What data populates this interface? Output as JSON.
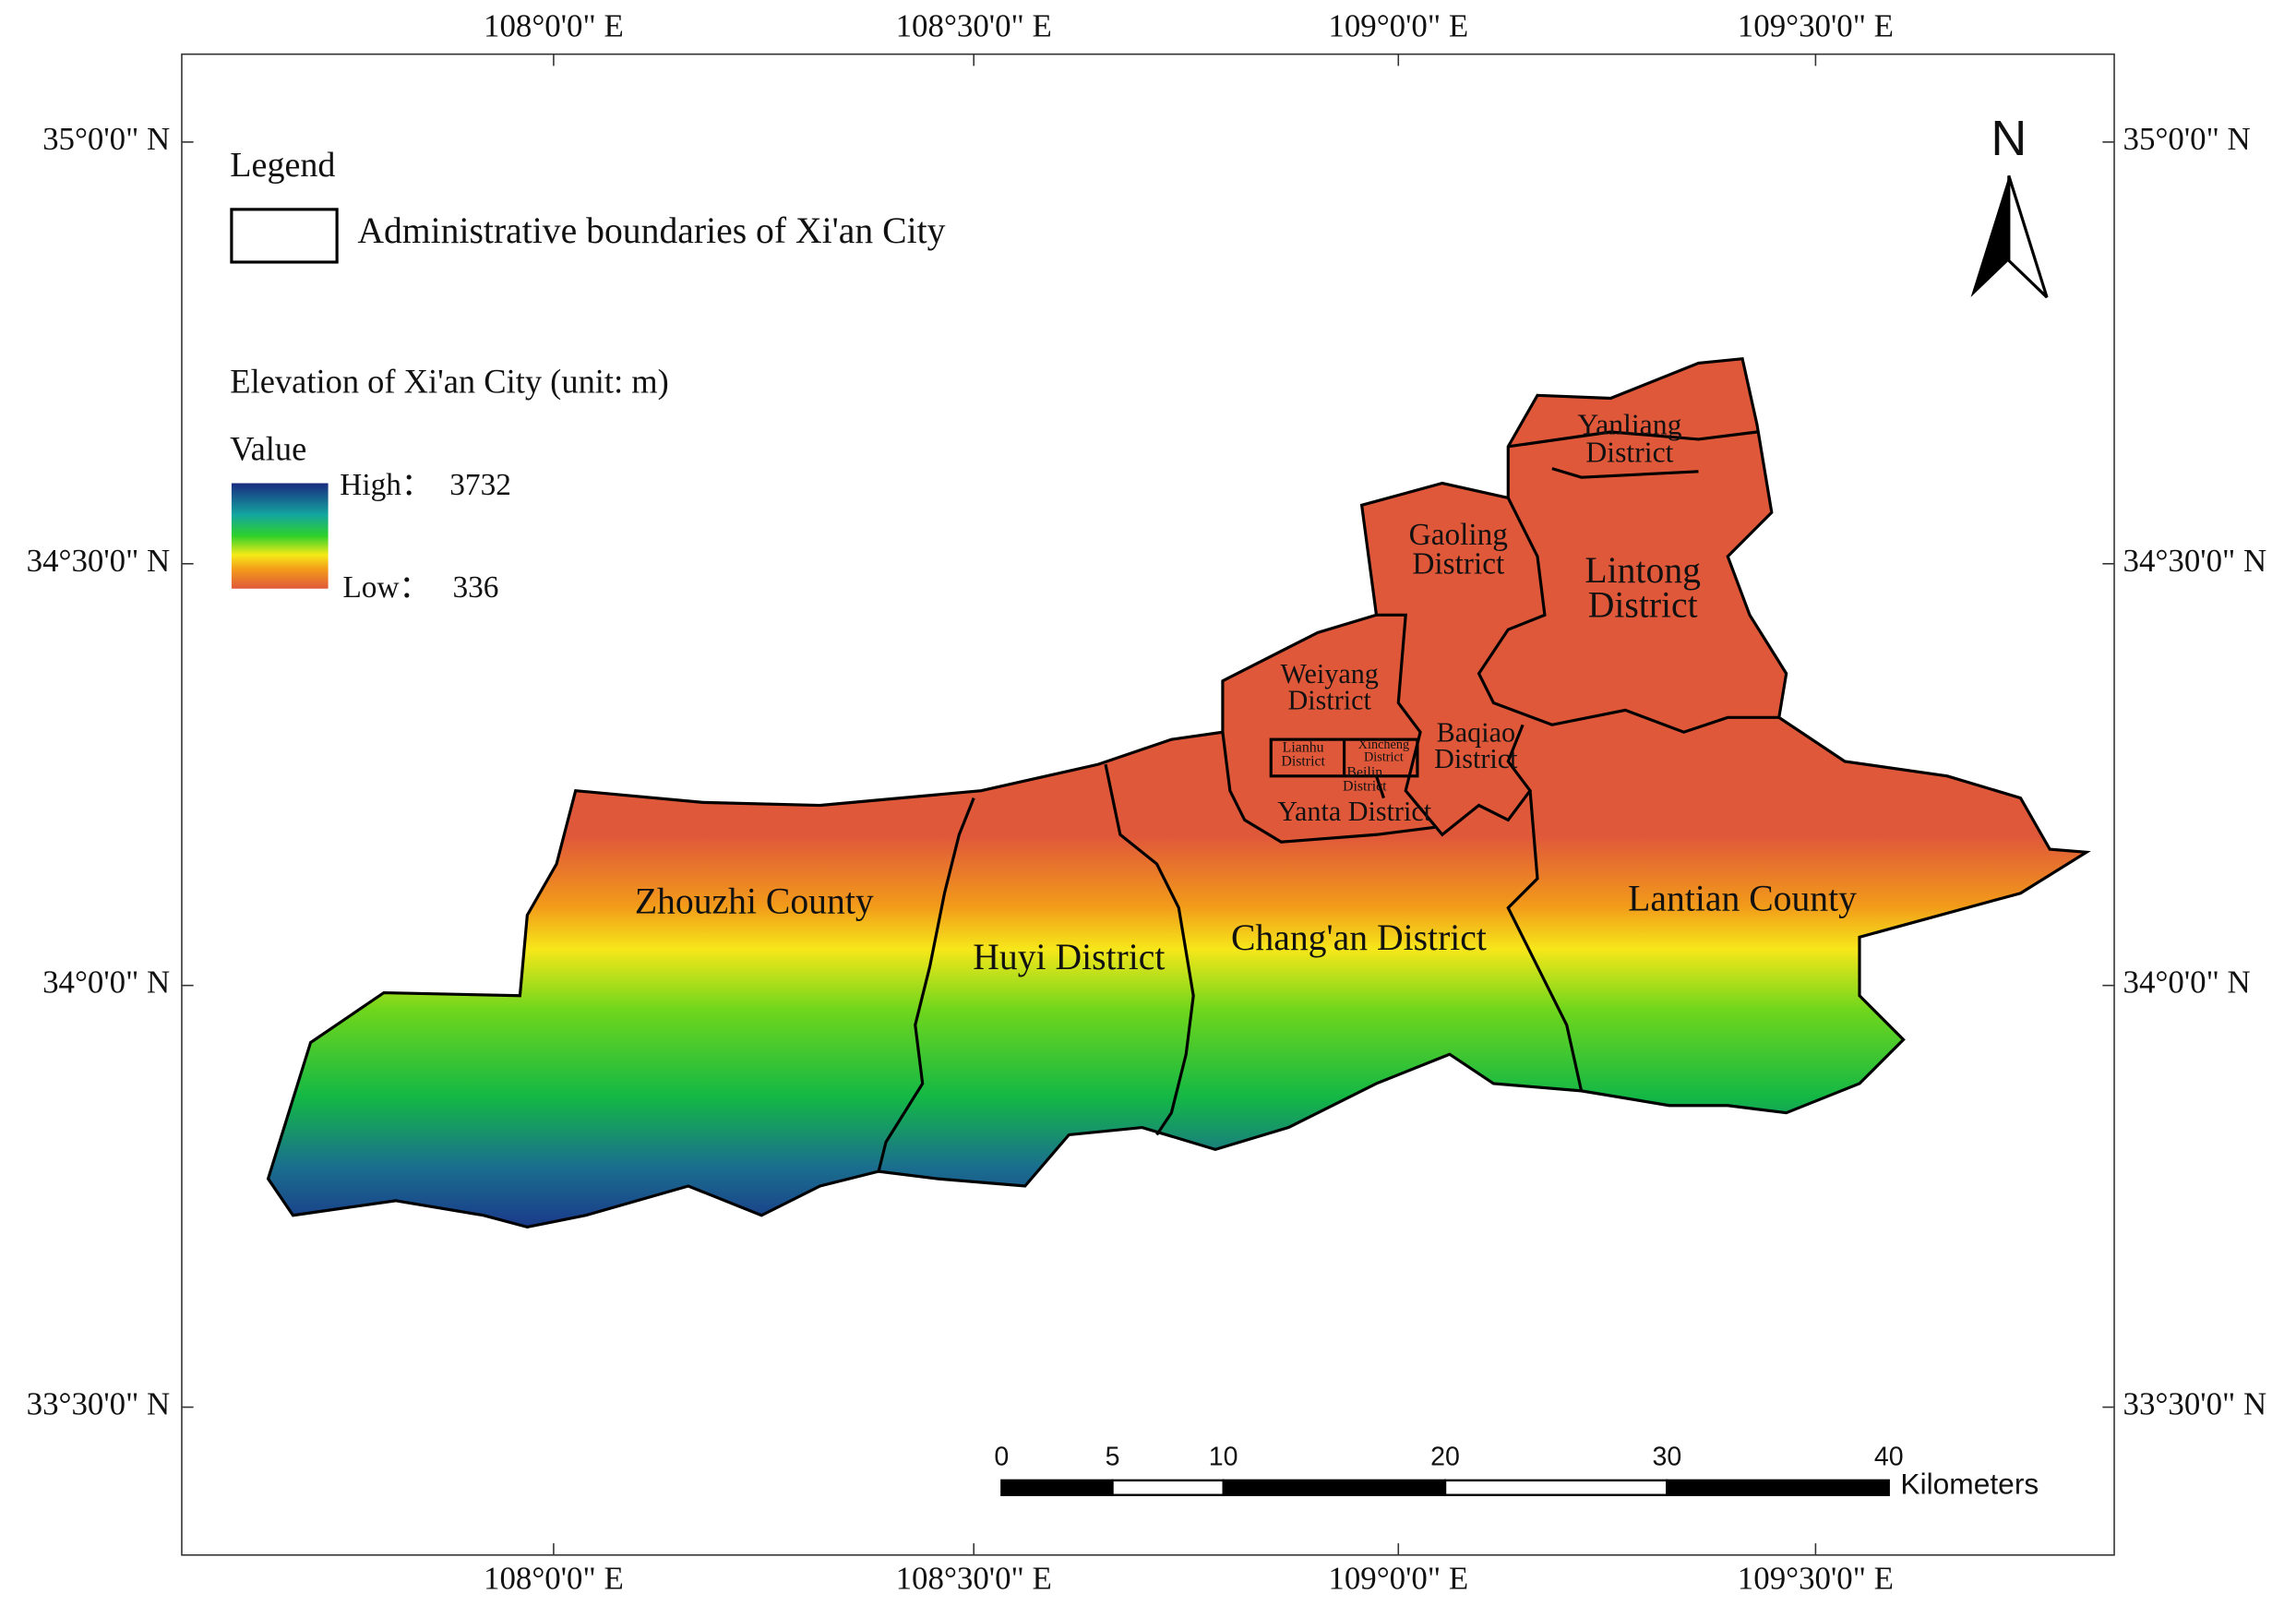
{
  "coordinates": {
    "top": [
      "108°0'0\" E",
      "108°30'0\" E",
      "109°0'0\" E",
      "109°30'0\" E"
    ],
    "bottom": [
      "108°0'0\" E",
      "108°30'0\" E",
      "109°0'0\" E",
      "109°30'0\" E"
    ],
    "left": [
      "35°0'0\" N",
      "34°30'0\" N",
      "34°0'0\" N",
      "33°30'0\" N"
    ],
    "right": [
      "35°0'0\" N",
      "34°30'0\" N",
      "34°0'0\" N",
      "33°30'0\" N"
    ]
  },
  "legend": {
    "title": "Legend",
    "boundary_label": "Administrative boundaries of Xi'an City",
    "elevation_title": "Elevation of Xi'an City (unit: m)",
    "value_label": "Value",
    "high_label": "High：",
    "high": 3732,
    "low_label": "Low：",
    "low": 336
  },
  "north_label": "N",
  "scale_bar": {
    "ticks": [
      0,
      5,
      10,
      20,
      30,
      40
    ],
    "unit": "Kilometers"
  },
  "districts": [
    {
      "lines": [
        "Yanliang",
        "District"
      ]
    },
    {
      "lines": [
        "Gaoling",
        "District"
      ]
    },
    {
      "lines": [
        "Lintong",
        "District"
      ]
    },
    {
      "lines": [
        "Weiyang",
        "District"
      ]
    },
    {
      "lines": [
        "Baqiao",
        "District"
      ]
    },
    {
      "lines": [
        "Lianhu",
        "District"
      ]
    },
    {
      "lines": [
        "Xincheng",
        "District"
      ]
    },
    {
      "lines": [
        "Beilin",
        "District"
      ]
    },
    {
      "lines": [
        "Yanta District"
      ]
    },
    {
      "lines": [
        "Zhouzhi County"
      ]
    },
    {
      "lines": [
        "Huyi District"
      ]
    },
    {
      "lines": [
        "Chang'an District"
      ]
    },
    {
      "lines": [
        "Lantian County"
      ]
    }
  ]
}
